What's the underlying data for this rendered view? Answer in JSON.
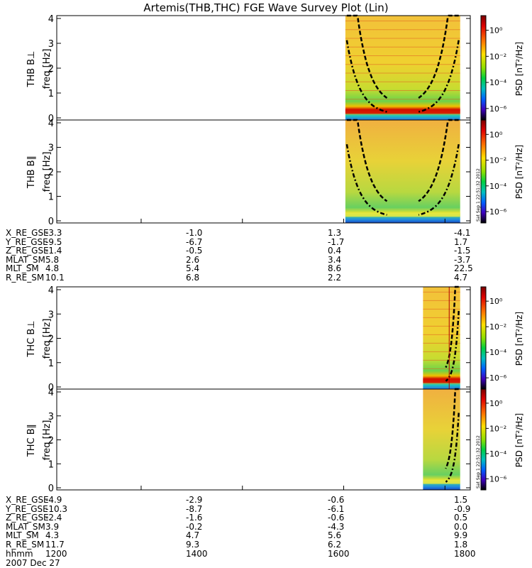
{
  "title": "Artemis(THB,THC) FGE Wave Survey Plot (Lin)",
  "panels": [
    {
      "id": "thb-bperp",
      "probe_label": "THB B⊥",
      "ylabel": "freq [Hz]"
    },
    {
      "id": "thb-bpar",
      "probe_label": "THB B∥",
      "ylabel": "freq [Hz]"
    },
    {
      "id": "thc-bperp",
      "probe_label": "THC B⊥",
      "ylabel": "freq [Hz]"
    },
    {
      "id": "thc-bpar",
      "probe_label": "THC B∥",
      "ylabel": "freq [Hz]"
    }
  ],
  "colorbar": {
    "label": "PSD [nT²/Hz]",
    "ticks": [
      "10⁰",
      "10⁻²",
      "10⁻⁴",
      "10⁻⁶"
    ]
  },
  "side_labels": {
    "top": "Sat Sep  1 22:51:32 2012",
    "bottom": "Sat Sep  1 22:51:32 2012"
  },
  "ephemeris_thb": [
    {
      "name": "X_RE_GSE",
      "values": [
        "-3.3",
        "-1.0",
        "1.3",
        "-4.1"
      ]
    },
    {
      "name": "Y_RE_GSE",
      "values": [
        "-9.5",
        "-6.7",
        "-1.7",
        "1.7"
      ]
    },
    {
      "name": "Z_RE_GSE",
      "values": [
        "-1.4",
        "-0.5",
        "0.4",
        "-1.5"
      ]
    },
    {
      "name": "MLAT_SM",
      "values": [
        "5.8",
        "2.6",
        "3.4",
        "-3.7"
      ]
    },
    {
      "name": "MLT_SM",
      "values": [
        "4.8",
        "5.4",
        "8.6",
        "22.5"
      ]
    },
    {
      "name": "R_RE_SM",
      "values": [
        "10.1",
        "6.8",
        "2.2",
        "4.7"
      ]
    }
  ],
  "ephemeris_thc": [
    {
      "name": "X_RE_GSE",
      "values": [
        "-4.9",
        "-2.9",
        "-0.6",
        "1.5"
      ]
    },
    {
      "name": "Y_RE_GSE",
      "values": [
        "-10.3",
        "-8.7",
        "-6.1",
        "-0.9"
      ]
    },
    {
      "name": "Z_RE_GSE",
      "values": [
        "-2.4",
        "-1.6",
        "-0.6",
        "0.5"
      ]
    },
    {
      "name": "MLAT_SM",
      "values": [
        "3.9",
        "-0.2",
        "-4.3",
        "0.0"
      ]
    },
    {
      "name": "MLT_SM",
      "values": [
        "4.3",
        "4.7",
        "5.6",
        "9.9"
      ]
    },
    {
      "name": "R_RE_SM",
      "values": [
        "11.7",
        "9.3",
        "6.2",
        "1.8"
      ]
    },
    {
      "name": "hhmm",
      "values": [
        "1200",
        "1400",
        "1600",
        "1800"
      ]
    }
  ],
  "date_label": "2007 Dec 27",
  "chart_data": {
    "type": "heatmap",
    "title": "Artemis(THB,THC) FGE Wave Survey Plot (Lin)",
    "x_unit": "hhmm",
    "xlim": [
      "1020",
      "1830"
    ],
    "x_ticks": [
      "1200",
      "1400",
      "1600",
      "1800"
    ],
    "ylim": [
      0,
      4
    ],
    "y_ticks": [
      0,
      1,
      2,
      3,
      4
    ],
    "ylabel": "freq [Hz]",
    "color_scale": "log",
    "color_range": [
      1e-07,
      10
    ],
    "colorbar_label": "PSD [nT²/Hz]",
    "panels": [
      {
        "name": "THB B⊥",
        "data_x_range": [
          "1602",
          "1818"
        ],
        "note": "strong band near 0.2 Hz; harmonic lines; dashed cyclotron curves"
      },
      {
        "name": "THB B∥",
        "data_x_range": [
          "1602",
          "1818"
        ],
        "note": "weaker signal; band near 0.2 Hz; dashed cyclotron curves"
      },
      {
        "name": "THC B⊥",
        "data_x_range": [
          "1734",
          "1818"
        ],
        "note": "signal at end of interval; dashed cyclotron curves"
      },
      {
        "name": "THC B∥",
        "data_x_range": [
          "1734",
          "1818"
        ],
        "note": "signal at end of interval; dashed cyclotron curves"
      }
    ]
  }
}
